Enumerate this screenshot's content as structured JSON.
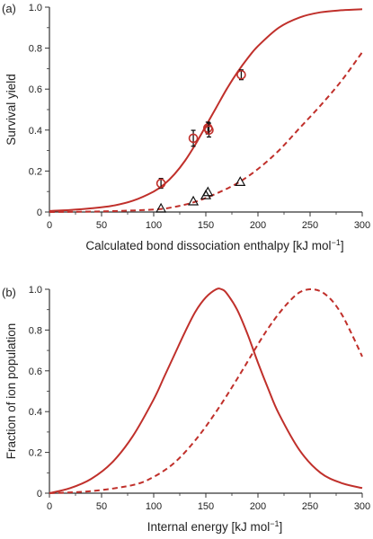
{
  "chart_data": [
    {
      "panel_label": "(a)",
      "type": "scatter",
      "xlabel": "Calculated bond dissociation enthalpy [kJ mol",
      "xlabel_sup": "−1",
      "xlabel_end": "]",
      "ylabel": "Survival yield",
      "xlim": [
        0,
        300
      ],
      "ylim": [
        0,
        1.0
      ],
      "x_ticks": [
        "0",
        "50",
        "100",
        "150",
        "200",
        "250",
        "300"
      ],
      "y_ticks": [
        "0",
        "0.2",
        "0.4",
        "0.6",
        "0.8",
        "1.0"
      ],
      "grid": false,
      "color": "#c0302b",
      "series": [
        {
          "style": "solid-curve",
          "x": [
            0,
            20,
            40,
            60,
            80,
            100,
            110,
            120,
            130,
            140,
            150,
            160,
            170,
            180,
            190,
            200,
            220,
            240,
            260,
            280,
            300
          ],
          "y": [
            0.005,
            0.01,
            0.018,
            0.03,
            0.055,
            0.1,
            0.135,
            0.185,
            0.25,
            0.33,
            0.42,
            0.51,
            0.6,
            0.68,
            0.75,
            0.81,
            0.9,
            0.95,
            0.975,
            0.985,
            0.99
          ]
        },
        {
          "style": "dashed-curve",
          "x": [
            0,
            50,
            100,
            120,
            140,
            160,
            180,
            200,
            220,
            240,
            260,
            280,
            300
          ],
          "y": [
            0.0,
            0.003,
            0.012,
            0.025,
            0.05,
            0.09,
            0.14,
            0.21,
            0.3,
            0.41,
            0.52,
            0.64,
            0.78
          ]
        },
        {
          "style": "circle-markers",
          "x": [
            107,
            138,
            152,
            153,
            184
          ],
          "y": [
            0.14,
            0.36,
            0.41,
            0.4,
            0.67
          ],
          "err": [
            0.015,
            0.03,
            0.02,
            0.025,
            0.015
          ]
        },
        {
          "style": "triangle-markers",
          "x": [
            107,
            138,
            150,
            152,
            183
          ],
          "y": [
            0.015,
            0.05,
            0.08,
            0.095,
            0.145
          ]
        }
      ]
    },
    {
      "panel_label": "(b)",
      "type": "line",
      "xlabel": "Internal energy [kJ mol",
      "xlabel_sup": "−1",
      "xlabel_end": "]",
      "ylabel": "Fraction of ion population",
      "xlim": [
        0,
        300
      ],
      "ylim": [
        0,
        1.0
      ],
      "x_ticks": [
        "0",
        "50",
        "100",
        "150",
        "200",
        "250",
        "300"
      ],
      "y_ticks": [
        "0",
        "0.2",
        "0.4",
        "0.6",
        "0.8",
        "1.0"
      ],
      "grid": false,
      "color": "#c0302b",
      "series": [
        {
          "style": "solid-curve",
          "x": [
            0,
            20,
            40,
            60,
            80,
            100,
            110,
            120,
            130,
            140,
            150,
            160,
            165,
            170,
            180,
            190,
            200,
            210,
            220,
            240,
            260,
            280,
            300
          ],
          "y": [
            0.0,
            0.025,
            0.07,
            0.15,
            0.28,
            0.46,
            0.57,
            0.68,
            0.79,
            0.89,
            0.96,
            1.0,
            1.0,
            0.98,
            0.9,
            0.78,
            0.64,
            0.51,
            0.39,
            0.21,
            0.1,
            0.05,
            0.025
          ]
        },
        {
          "style": "dashed-curve",
          "x": [
            0,
            40,
            80,
            100,
            120,
            140,
            160,
            180,
            200,
            210,
            220,
            230,
            240,
            250,
            260,
            270,
            280,
            290,
            300
          ],
          "y": [
            0.0,
            0.01,
            0.04,
            0.08,
            0.15,
            0.26,
            0.4,
            0.56,
            0.73,
            0.81,
            0.88,
            0.94,
            0.985,
            1.0,
            0.99,
            0.95,
            0.88,
            0.78,
            0.67
          ]
        }
      ]
    }
  ]
}
